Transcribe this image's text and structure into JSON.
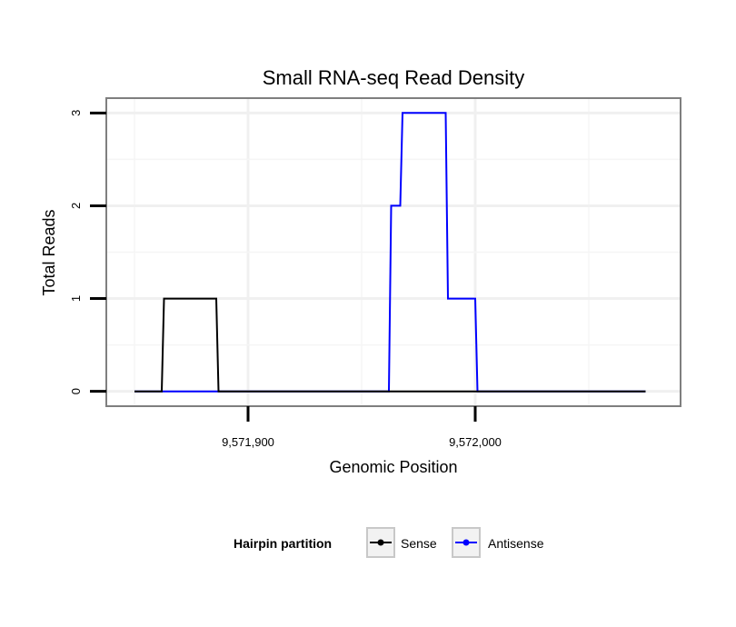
{
  "chart_data": {
    "type": "line",
    "title": "Small RNA-seq Read Density",
    "xlabel": "Genomic Position",
    "ylabel": "Total Reads",
    "xlim": [
      9571838,
      9572090
    ],
    "ylim": [
      -0.15,
      3.15
    ],
    "xticks": [
      9571900,
      9572000
    ],
    "xtick_labels": [
      "9,571,900",
      "9,572,000"
    ],
    "yticks": [
      0,
      1,
      2,
      3
    ],
    "ytick_labels": [
      "0",
      "1",
      "2",
      "3"
    ],
    "grid": true,
    "legend": {
      "title": "Hairpin partition",
      "position": "bottom",
      "entries": [
        "Sense",
        "Antisense"
      ]
    },
    "series": [
      {
        "name": "Antisense",
        "color": "#0000ff",
        "x": [
          9571850,
          9571862,
          9571863,
          9571886,
          9571887,
          9571962,
          9571963,
          9571967,
          9571968,
          9571987,
          9571988,
          9572000,
          9572001,
          9572018,
          9572019,
          9572075
        ],
        "y": [
          0,
          0,
          0,
          0,
          0,
          0,
          2,
          2,
          3,
          3,
          1,
          1,
          0,
          0,
          0,
          0
        ]
      },
      {
        "name": "Sense",
        "color": "#000000",
        "x": [
          9571850,
          9571862,
          9571863,
          9571886,
          9571887,
          9571962,
          9571963,
          9571967,
          9571968,
          9571987,
          9571988,
          9572000,
          9572001,
          9572018,
          9572019,
          9572075
        ],
        "y": [
          0,
          0,
          1,
          1,
          0,
          0,
          0,
          0,
          0,
          0,
          0,
          0,
          0,
          0,
          0,
          0
        ]
      }
    ]
  }
}
